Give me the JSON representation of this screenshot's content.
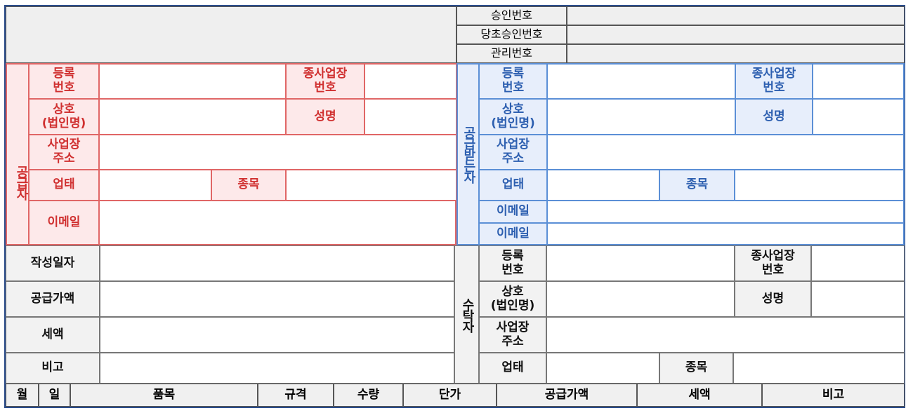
{
  "header": {
    "approval_no": "승인번호",
    "original_approval_no": "당초승인번호",
    "management_no": "관리번호"
  },
  "supplier": {
    "section": "공급자",
    "reg_no": "등록\n번호",
    "branch_no": "종사업장\n번호",
    "company": "상호\n(법인명)",
    "name": "성명",
    "address": "사업장\n주소",
    "business_type": "업태",
    "item": "종목",
    "email": "이메일"
  },
  "receiver": {
    "section": "공급받는자",
    "reg_no": "등록\n번호",
    "branch_no": "종사업장\n번호",
    "company": "상호\n(법인명)",
    "name": "성명",
    "address": "사업장\n주소",
    "business_type": "업태",
    "item": "종목",
    "email1": "이메일",
    "email2": "이메일"
  },
  "summary": {
    "write_date": "작성일자",
    "supply_amount": "공급가액",
    "tax": "세액",
    "note": "비고"
  },
  "trustee": {
    "section": "수탁자",
    "reg_no": "등록\n번호",
    "branch_no": "종사업장\n번호",
    "company": "상호\n(법인명)",
    "name": "성명",
    "address": "사업장\n주소",
    "business_type": "업태",
    "item": "종목"
  },
  "items_header": {
    "month": "월",
    "day": "일",
    "product": "품목",
    "spec": "규격",
    "qty": "수량",
    "unit_price": "단가",
    "supply_amount": "공급가액",
    "tax": "세액",
    "note": "비고"
  }
}
